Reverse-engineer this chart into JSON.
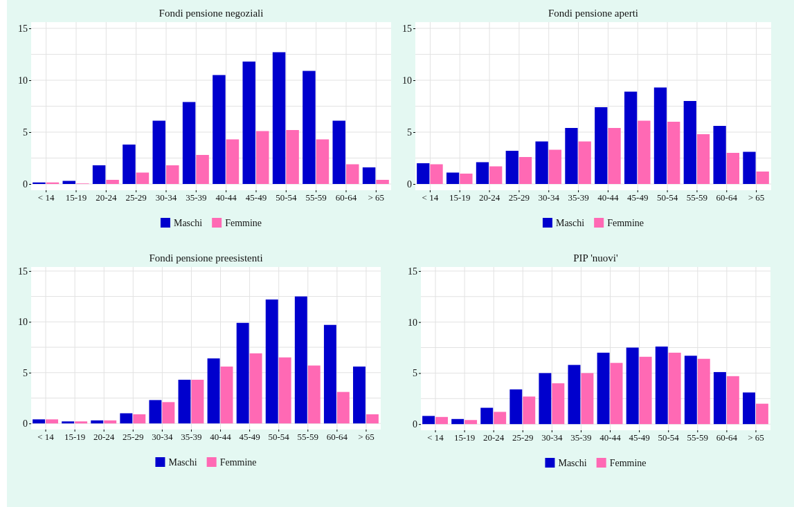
{
  "chart_data": [
    {
      "type": "bar",
      "title": "Fondi pensione negoziali",
      "categories": [
        "< 14",
        "15-19",
        "20-24",
        "25-29",
        "30-34",
        "35-39",
        "40-44",
        "45-49",
        "50-54",
        "55-59",
        "60-64",
        "> 65"
      ],
      "series": [
        {
          "name": "Maschi",
          "color": "#0000cd",
          "values": [
            0.15,
            0.3,
            1.8,
            3.8,
            6.1,
            7.9,
            10.5,
            11.8,
            12.7,
            10.9,
            6.1,
            1.6
          ]
        },
        {
          "name": "Femmine",
          "color": "#ff69b4",
          "values": [
            0.15,
            0.05,
            0.4,
            1.1,
            1.8,
            2.8,
            4.3,
            5.1,
            5.2,
            4.3,
            1.9,
            0.4
          ]
        }
      ],
      "ylim": [
        -0.6,
        15.6
      ],
      "yticks": [
        0,
        5,
        10,
        15
      ],
      "grid": true,
      "legend": "bottom"
    },
    {
      "type": "bar",
      "title": "Fondi pensione aperti",
      "categories": [
        "< 14",
        "15-19",
        "20-24",
        "25-29",
        "30-34",
        "35-39",
        "40-44",
        "45-49",
        "50-54",
        "55-59",
        "60-64",
        "> 65"
      ],
      "series": [
        {
          "name": "Maschi",
          "color": "#0000cd",
          "values": [
            2.0,
            1.1,
            2.1,
            3.2,
            4.1,
            5.4,
            7.4,
            8.9,
            9.3,
            8.0,
            5.6,
            3.1
          ]
        },
        {
          "name": "Femmine",
          "color": "#ff69b4",
          "values": [
            1.9,
            1.0,
            1.7,
            2.6,
            3.3,
            4.1,
            5.4,
            6.1,
            6.0,
            4.8,
            3.0,
            1.2
          ]
        }
      ],
      "ylim": [
        -0.6,
        15.6
      ],
      "yticks": [
        0,
        5,
        10,
        15
      ],
      "grid": true,
      "legend": "bottom"
    },
    {
      "type": "bar",
      "title": "Fondi pensione preesistenti",
      "categories": [
        "< 14",
        "15-19",
        "20-24",
        "25-29",
        "30-34",
        "35-39",
        "40-44",
        "45-49",
        "50-54",
        "55-59",
        "60-64",
        "> 65"
      ],
      "series": [
        {
          "name": "Maschi",
          "color": "#0000cd",
          "values": [
            0.4,
            0.2,
            0.3,
            1.0,
            2.3,
            4.3,
            6.4,
            9.9,
            12.2,
            12.5,
            9.7,
            5.6
          ]
        },
        {
          "name": "Femmine",
          "color": "#ff69b4",
          "values": [
            0.4,
            0.2,
            0.3,
            0.9,
            2.1,
            4.3,
            5.6,
            6.9,
            6.5,
            5.7,
            3.1,
            0.9
          ]
        }
      ],
      "ylim": [
        -0.6,
        15.4
      ],
      "yticks": [
        0,
        5,
        10,
        15
      ],
      "grid": true,
      "legend": "bottom"
    },
    {
      "type": "bar",
      "title": "PIP 'nuovi'",
      "categories": [
        "< 14",
        "15-19",
        "20-24",
        "25-29",
        "30-34",
        "35-39",
        "40-44",
        "45-49",
        "50-54",
        "55-59",
        "60-64",
        "> 65"
      ],
      "series": [
        {
          "name": "Maschi",
          "color": "#0000cd",
          "values": [
            0.8,
            0.5,
            1.6,
            3.4,
            5.0,
            5.8,
            7.0,
            7.5,
            7.6,
            6.7,
            5.1,
            3.1
          ]
        },
        {
          "name": "Femmine",
          "color": "#ff69b4",
          "values": [
            0.7,
            0.4,
            1.2,
            2.7,
            4.0,
            5.0,
            6.0,
            6.6,
            7.0,
            6.4,
            4.7,
            2.0
          ]
        }
      ],
      "ylim": [
        -0.6,
        15.4
      ],
      "yticks": [
        0,
        5,
        10,
        15
      ],
      "grid": true,
      "legend": "bottom"
    }
  ]
}
